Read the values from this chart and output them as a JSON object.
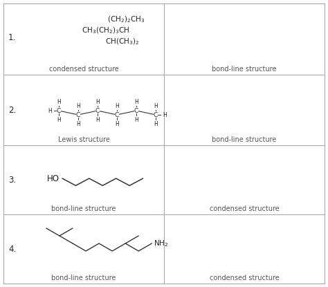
{
  "bg_color": "#ffffff",
  "text_color": "#222222",
  "grid_color": "#aaaaaa",
  "row_labels": [
    "1.",
    "2.",
    "3.",
    "4."
  ],
  "left_labels": [
    "condensed structure",
    "Lewis structure",
    "bond-line structure",
    "bond-line structure"
  ],
  "right_labels": [
    "bond-line structure",
    "bond-line structure",
    "condensed structure",
    "condensed structure"
  ],
  "label_fontsize": 7.0,
  "number_fontsize": 8.5,
  "chem_fontsize": 7.5
}
